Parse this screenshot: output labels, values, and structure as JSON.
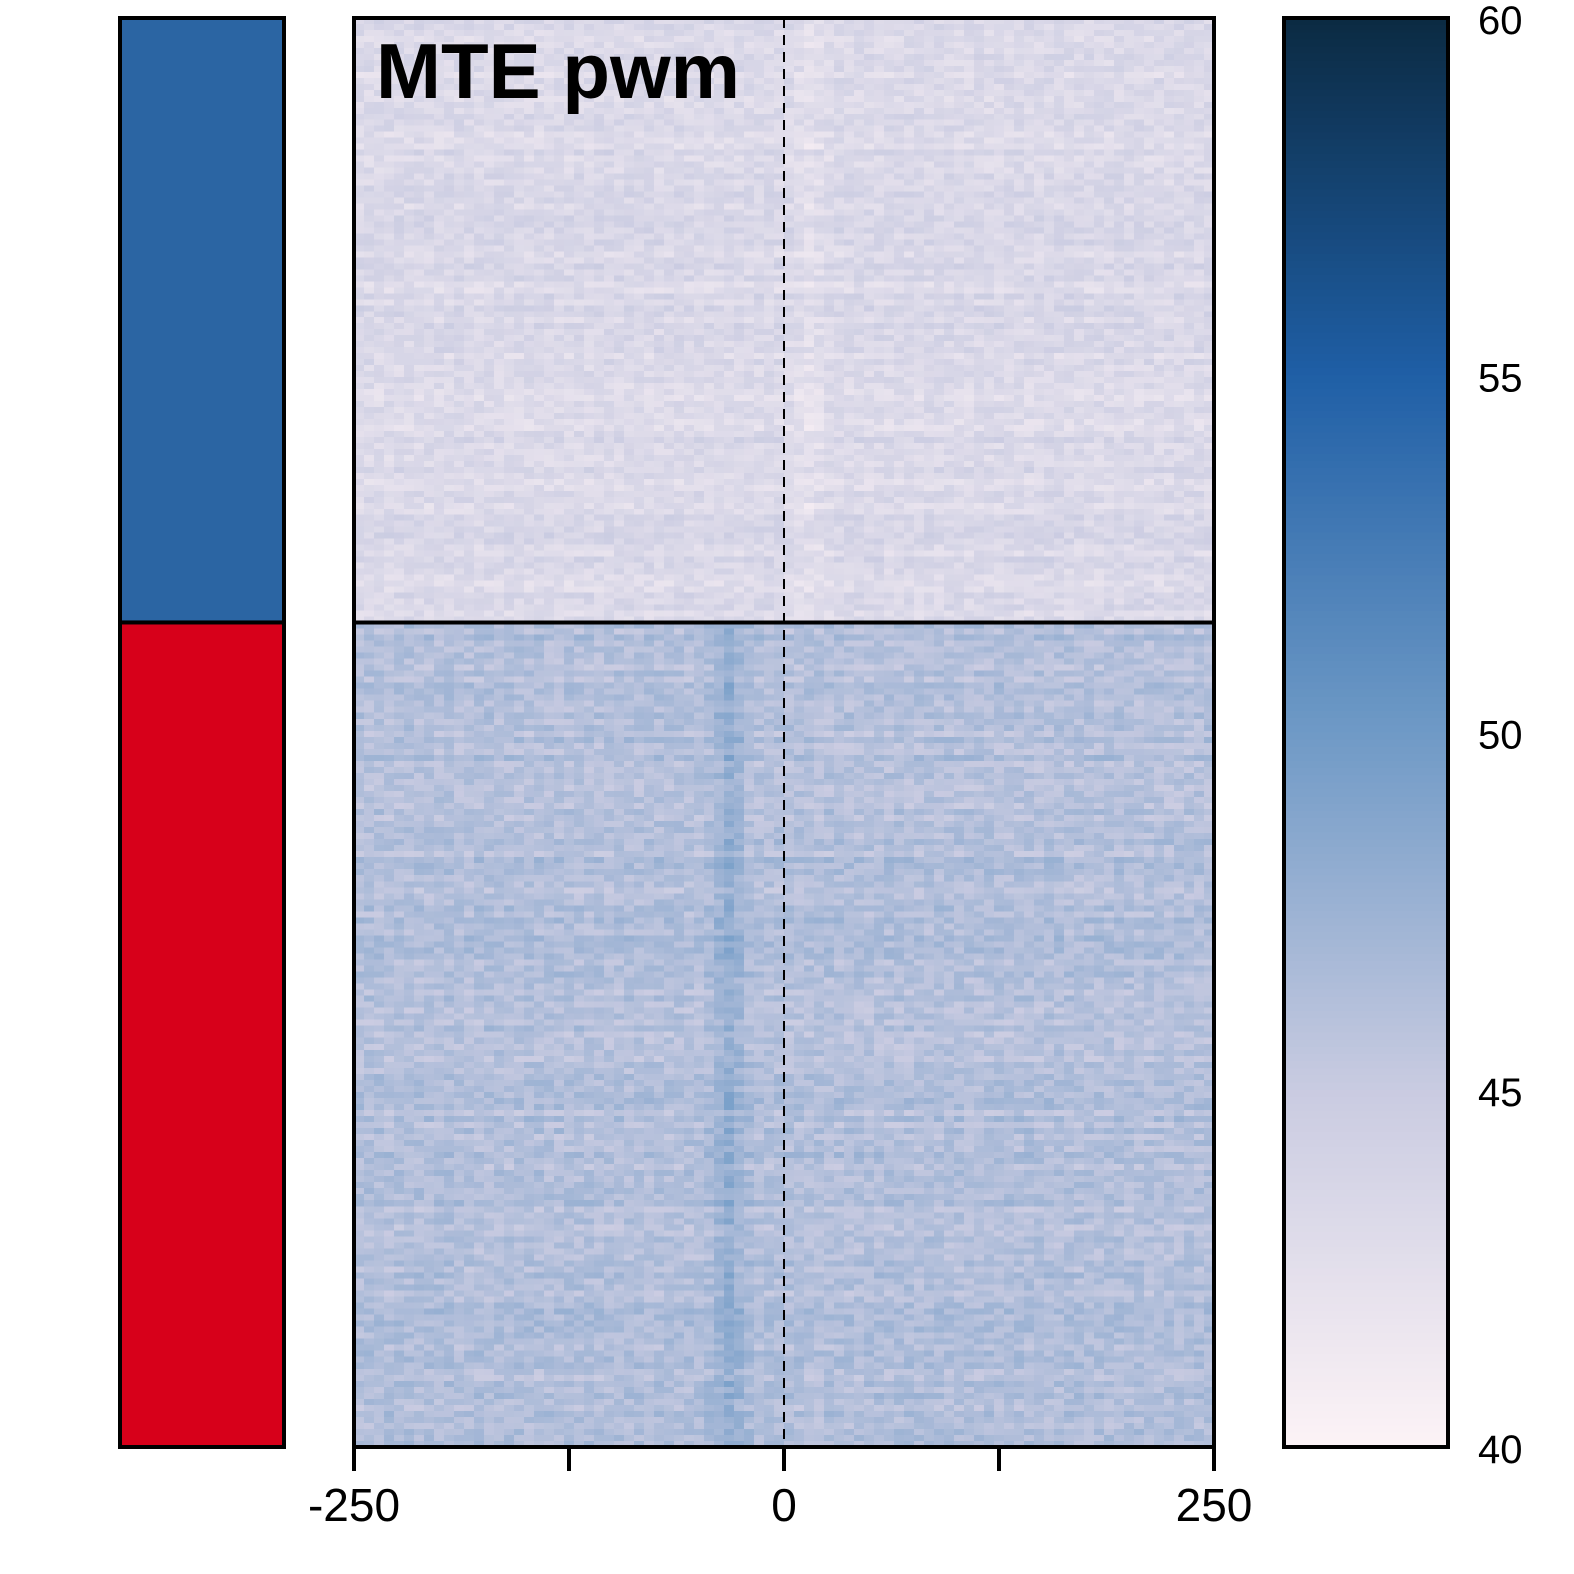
{
  "chart_data": {
    "type": "heatmap",
    "title": "MTE pwm",
    "xlabel": "",
    "ylabel": "",
    "xlim": [
      -250,
      250
    ],
    "x_ticks": [
      -250,
      -125,
      0,
      125,
      250
    ],
    "x_tick_labels": [
      "-250",
      "",
      "0",
      "",
      "250"
    ],
    "reference_line": {
      "x": 0,
      "style": "dashed"
    },
    "groups": [
      {
        "color": "#2b65a3",
        "row_fraction": 0.423,
        "mean_value": 43.3,
        "center_feature": {
          "x": 15,
          "value": 42.2,
          "note": "lighter streak just right of center"
        }
      },
      {
        "color": "#d7001a",
        "row_fraction": 0.577,
        "mean_value": 46.2,
        "center_feature": {
          "x": -32,
          "value": 48.5,
          "note": "darker streak left of center"
        }
      }
    ],
    "color_scale": {
      "min": 40,
      "max": 60,
      "ticks": [
        40,
        45,
        50,
        55,
        60
      ],
      "stops": [
        {
          "value": 40,
          "color": "#fdf3f6"
        },
        {
          "value": 45,
          "color": "#c9cbe1"
        },
        {
          "value": 50,
          "color": "#6f9ac6"
        },
        {
          "value": 55,
          "color": "#1f5fa6"
        },
        {
          "value": 60,
          "color": "#0b2a42"
        }
      ]
    }
  }
}
